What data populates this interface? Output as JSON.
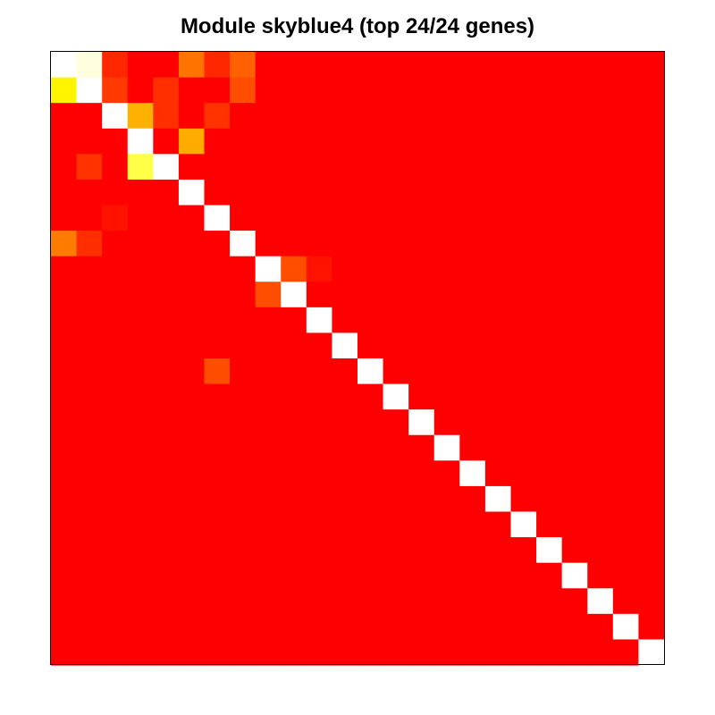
{
  "chart_data": {
    "type": "heatmap",
    "title": "Module skyblue4 (top 24/24 genes)",
    "xlabel": "",
    "ylabel": "",
    "n_rows": 24,
    "n_cols": 24,
    "color_scale": {
      "low": "#FF0000",
      "mid_low": "#FF8000",
      "mid": "#FFBF00",
      "high": "#FFFF00",
      "max": "#FFFFFF"
    },
    "diagonal_value": 1.0,
    "background_value": 0.0,
    "cells": [
      {
        "row": 0,
        "col": 1,
        "value": 0.97
      },
      {
        "row": 0,
        "col": 2,
        "value": 0.1
      },
      {
        "row": 0,
        "col": 5,
        "value": 0.3
      },
      {
        "row": 0,
        "col": 6,
        "value": 0.1
      },
      {
        "row": 0,
        "col": 7,
        "value": 0.25
      },
      {
        "row": 1,
        "col": 0,
        "value": 0.72
      },
      {
        "row": 1,
        "col": 2,
        "value": 0.15
      },
      {
        "row": 1,
        "col": 4,
        "value": 0.12
      },
      {
        "row": 1,
        "col": 7,
        "value": 0.2
      },
      {
        "row": 2,
        "col": 3,
        "value": 0.5
      },
      {
        "row": 2,
        "col": 4,
        "value": 0.12
      },
      {
        "row": 2,
        "col": 6,
        "value": 0.13
      },
      {
        "row": 3,
        "col": 5,
        "value": 0.48
      },
      {
        "row": 4,
        "col": 1,
        "value": 0.13
      },
      {
        "row": 4,
        "col": 3,
        "value": 0.82
      },
      {
        "row": 5,
        "col": 0,
        "value": 0.0
      },
      {
        "row": 6,
        "col": 2,
        "value": 0.05
      },
      {
        "row": 7,
        "col": 0,
        "value": 0.32
      },
      {
        "row": 7,
        "col": 1,
        "value": 0.12
      },
      {
        "row": 8,
        "col": 9,
        "value": 0.2
      },
      {
        "row": 8,
        "col": 10,
        "value": 0.05
      },
      {
        "row": 9,
        "col": 8,
        "value": 0.2
      },
      {
        "row": 12,
        "col": 6,
        "value": 0.2
      }
    ]
  }
}
